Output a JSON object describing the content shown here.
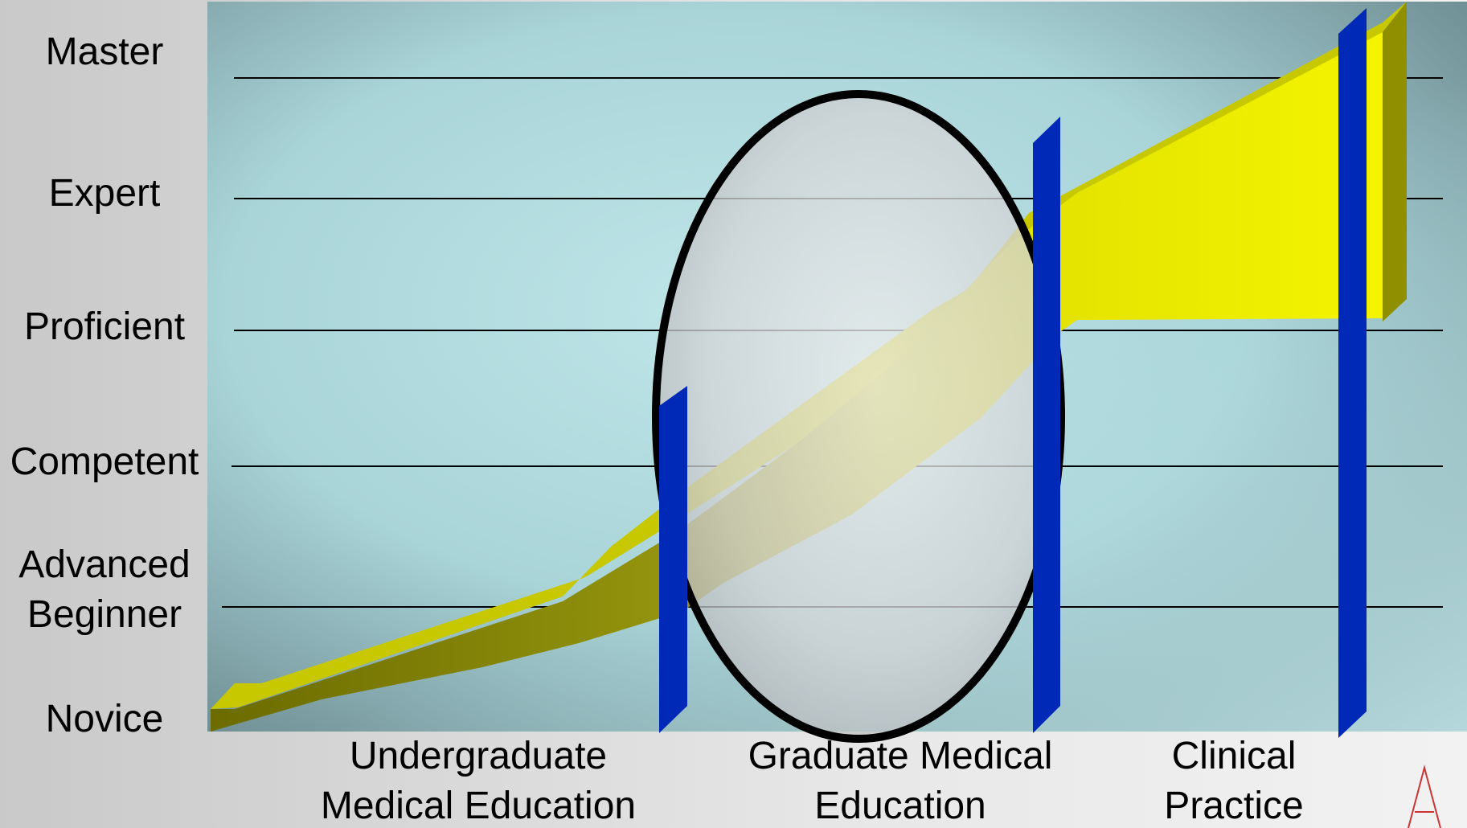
{
  "levels": {
    "master": "Master",
    "expert": "Expert",
    "proficient": "Proficient",
    "competent": "Competent",
    "advanced_beginner": "Advanced\nBeginner",
    "novice": "Novice"
  },
  "stages": {
    "undergraduate": "Undergraduate\nMedical Education",
    "graduate": "Graduate Medical\nEducation",
    "clinical": "Clinical\nPractice"
  },
  "colors": {
    "ribbon": "#e8e800",
    "ribbon_shade": "#8a8a00",
    "barrier": "#0029b8",
    "ellipse_outline": "#000000"
  },
  "icons": {
    "logo": "red-triangle-logo-icon"
  }
}
